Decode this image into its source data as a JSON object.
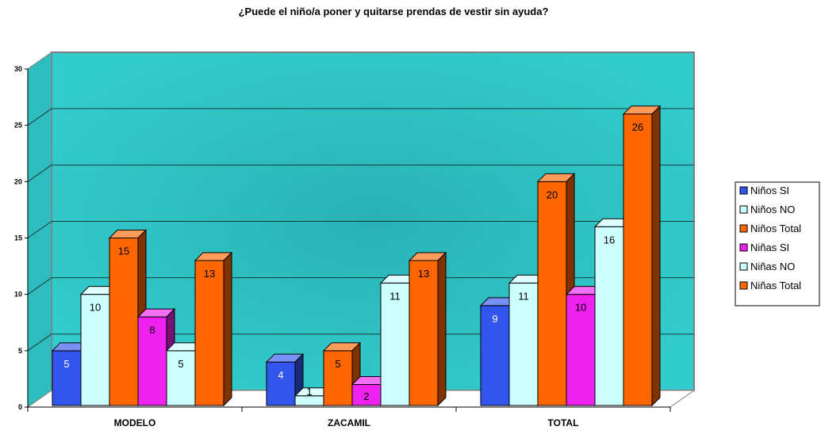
{
  "chart_data": {
    "type": "bar",
    "title": "¿Puede el niño/a poner y quitarse prendas de vestir sin ayuda?",
    "xlabel": "",
    "ylabel": "",
    "ylim": [
      0,
      30
    ],
    "yticks": [
      "0",
      "5",
      "10",
      "15",
      "20",
      "25",
      "30"
    ],
    "grid": true,
    "legend_position": "right",
    "categories": [
      "MODELO",
      "ZACAMIL",
      "TOTAL"
    ],
    "series": [
      {
        "name": "Niños SI",
        "values": [
          5,
          4,
          9
        ],
        "color": "#3355ee"
      },
      {
        "name": "Niños NO",
        "values": [
          10,
          1,
          11
        ],
        "color": "#ccffff"
      },
      {
        "name": "Niños Total",
        "values": [
          15,
          5,
          20
        ],
        "color": "#ff6600"
      },
      {
        "name": "Niñas SI",
        "values": [
          8,
          2,
          10
        ],
        "color": "#ee22ee"
      },
      {
        "name": "Niñas NO",
        "values": [
          5,
          11,
          16
        ],
        "color": "#ccffff"
      },
      {
        "name": "Niñas Total",
        "values": [
          13,
          13,
          26
        ],
        "color": "#ff6600"
      }
    ],
    "plot_background": "#33cccc"
  }
}
